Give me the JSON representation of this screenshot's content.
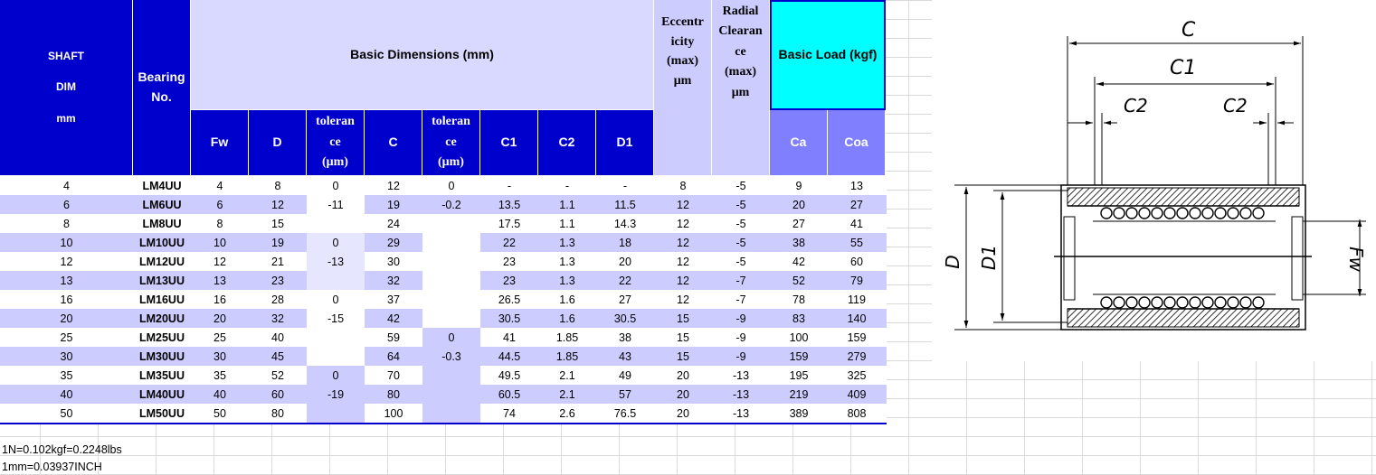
{
  "header": {
    "shaft": "SHAFT\n\nDIM\n\nmm",
    "bearing_no": "Bearing\nNo.",
    "basic_dimensions": "Basic Dimensions (mm)",
    "eccentricity": "Eccentr\nicity\n(max)\nμm",
    "radial_clearance": "Radial\nClearan\nce\n(max)\nμm",
    "basic_load": "Basic Load (kgf)",
    "sub": {
      "fw": "Fw",
      "d": "D",
      "tolerance1": "toleran\nce\n(μm)",
      "c": "C",
      "tolerance2": "toleran\nce\n(μm)",
      "c1": "C1",
      "c2": "C2",
      "d1": "D1",
      "ca": "Ca",
      "coa": "Coa"
    }
  },
  "rows": [
    [
      "4",
      "LM4UU",
      "4",
      "8",
      "12",
      "-",
      "-",
      "-",
      "8",
      "-5",
      "9",
      "13"
    ],
    [
      "6",
      "LM6UU",
      "6",
      "12",
      "19",
      "13.5",
      "1.1",
      "11.5",
      "12",
      "-5",
      "20",
      "27"
    ],
    [
      "8",
      "LM8UU",
      "8",
      "15",
      "24",
      "17.5",
      "1.1",
      "14.3",
      "12",
      "-5",
      "27",
      "41"
    ],
    [
      "10",
      "LM10UU",
      "10",
      "19",
      "29",
      "22",
      "1.3",
      "18",
      "12",
      "-5",
      "38",
      "55"
    ],
    [
      "12",
      "LM12UU",
      "12",
      "21",
      "30",
      "23",
      "1.3",
      "20",
      "12",
      "-5",
      "42",
      "60"
    ],
    [
      "13",
      "LM13UU",
      "13",
      "23",
      "32",
      "23",
      "1.3",
      "22",
      "12",
      "-7",
      "52",
      "79"
    ],
    [
      "16",
      "LM16UU",
      "16",
      "28",
      "37",
      "26.5",
      "1.6",
      "27",
      "12",
      "-7",
      "78",
      "119"
    ],
    [
      "20",
      "LM20UU",
      "20",
      "32",
      "42",
      "30.5",
      "1.6",
      "30.5",
      "15",
      "-9",
      "83",
      "140"
    ],
    [
      "25",
      "LM25UU",
      "25",
      "40",
      "59",
      "41",
      "1.85",
      "38",
      "15",
      "-9",
      "100",
      "159"
    ],
    [
      "30",
      "LM30UU",
      "30",
      "45",
      "64",
      "44.5",
      "1.85",
      "43",
      "15",
      "-9",
      "159",
      "279"
    ],
    [
      "35",
      "LM35UU",
      "35",
      "52",
      "70",
      "49.5",
      "2.1",
      "49",
      "20",
      "-13",
      "195",
      "325"
    ],
    [
      "40",
      "LM40UU",
      "40",
      "60",
      "80",
      "60.5",
      "2.1",
      "57",
      "20",
      "-13",
      "219",
      "409"
    ],
    [
      "50",
      "LM50UU",
      "50",
      "80",
      "100",
      "74",
      "2.6",
      "76.5",
      "20",
      "-13",
      "389",
      "808"
    ]
  ],
  "tolerance_d": [
    {
      "row": 0,
      "value": "0"
    },
    {
      "row": 1,
      "value": "-11"
    },
    {
      "row": 3,
      "value": "0"
    },
    {
      "row": 4,
      "value": "-13"
    },
    {
      "row": 6,
      "value": "0"
    },
    {
      "row": 7,
      "value": "-15"
    },
    {
      "row": 10,
      "value": "0"
    },
    {
      "row": 11,
      "value": "-19"
    }
  ],
  "tolerance_c": [
    {
      "row": 0,
      "value": "0"
    },
    {
      "row": 1,
      "value": "-0.2"
    },
    {
      "row": 8,
      "value": "0"
    },
    {
      "row": 9,
      "value": "-0.3"
    }
  ],
  "notes": {
    "line1": "1N=0.102kgf=0.2248lbs",
    "line2": "1mm=0.03937INCH"
  },
  "diagram": {
    "c": "C",
    "c1": "C1",
    "c2_left": "C2",
    "c2_right": "C2",
    "d": "D",
    "d1": "D1",
    "fw": "Fw"
  }
}
